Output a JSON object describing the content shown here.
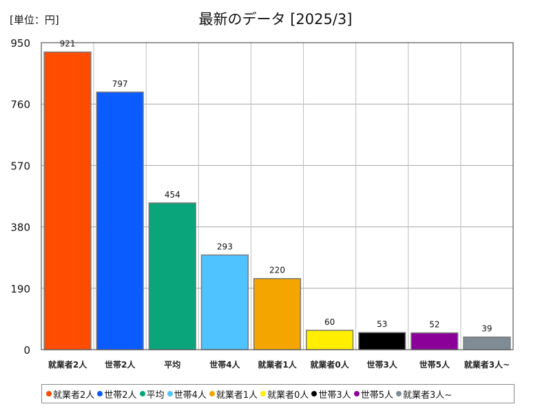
{
  "unit_label": "[単位：円]",
  "chart_data": {
    "type": "bar",
    "title": "最新のデータ [2025/3]",
    "categories": [
      "就業者2人",
      "世帯2人",
      "平均",
      "世帯4人",
      "就業者1人",
      "就業者0人",
      "世帯3人",
      "世帯5人",
      "就業者3人~"
    ],
    "values": [
      921,
      797,
      454,
      293,
      220,
      60,
      53,
      52,
      39
    ],
    "colors": [
      "#ff4c00",
      "#0a5cff",
      "#0aa57a",
      "#4fc3ff",
      "#f4a500",
      "#ffee00",
      "#000000",
      "#8b0099",
      "#7f8c96"
    ],
    "ylim": [
      0,
      950
    ],
    "yticks": [
      0,
      190,
      380,
      570,
      760,
      950
    ],
    "grid": true,
    "legend_position": "bottom"
  }
}
